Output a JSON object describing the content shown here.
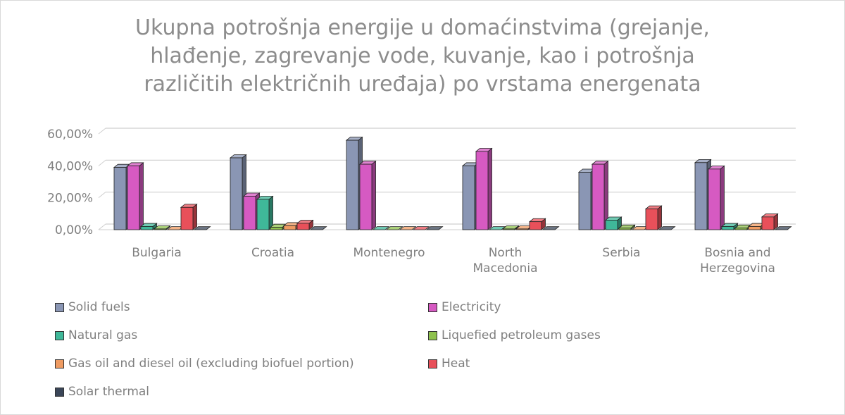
{
  "title": "Ukupna potrošnja energije u domaćinstvima (grejanje, hlađenje, zagrevanje vode, kuvanje, kao i potrošnja različitih električnih uređaja) po vrstama energenata",
  "title_lines": [
    "Ukupna potrošnja energije u domaćinstvima (grejanje,",
    "hlađenje, zagrevanje vode, kuvanje, kao i potrošnja",
    "različitih električnih uređaja) po vrstama energenata"
  ],
  "chart_data": {
    "type": "bar",
    "title": "Ukupna potrošnja energije u domaćinstvima (grejanje, hlađenje, zagrevanje vode, kuvanje, kao i potrošnja različitih električnih uređaja) po vrstama energenata",
    "xlabel": "",
    "ylabel": "",
    "ylim": [
      0,
      60
    ],
    "ytick_labels": [
      "0,00%",
      "20,00%",
      "40,00%",
      "60,00%"
    ],
    "yticks": [
      0,
      20,
      40,
      60
    ],
    "grid": true,
    "legend_position": "bottom",
    "style": "3d-clustered-column",
    "categories": [
      "Bulgaria",
      "Croatia",
      "Montenegro",
      "North Macedonia",
      "Serbia",
      "Bosnia and Herzegovina"
    ],
    "category_lines": [
      [
        "Bulgaria"
      ],
      [
        "Croatia"
      ],
      [
        "Montenegro"
      ],
      [
        "North",
        "Macedonia"
      ],
      [
        "Serbia"
      ],
      [
        "Bosnia and",
        "Herzegovina"
      ]
    ],
    "series": [
      {
        "name": "Solid fuels",
        "color": "#8a96b4",
        "values": [
          39,
          45,
          56,
          40,
          36,
          42
        ]
      },
      {
        "name": "Electricity",
        "color": "#d65ac2",
        "values": [
          40,
          21,
          41,
          49,
          41,
          38
        ]
      },
      {
        "name": "Natural gas",
        "color": "#3fb899",
        "values": [
          2,
          19,
          0,
          0,
          6,
          2
        ]
      },
      {
        "name": "Liquefied petroleum gases",
        "color": "#8fc24e",
        "values": [
          0.5,
          1.5,
          0,
          0.5,
          1,
          1
        ]
      },
      {
        "name": "Gas oil and diesel oil (excluding biofuel portion)",
        "color": "#ef9b62",
        "values": [
          0,
          2.5,
          0,
          0.5,
          0,
          2
        ]
      },
      {
        "name": "Heat",
        "color": "#e8505a",
        "values": [
          14,
          4,
          0,
          5,
          13,
          8
        ]
      },
      {
        "name": "Solar thermal",
        "color": "#3a4658",
        "values": [
          0,
          0,
          0,
          0,
          0,
          0
        ]
      }
    ]
  }
}
